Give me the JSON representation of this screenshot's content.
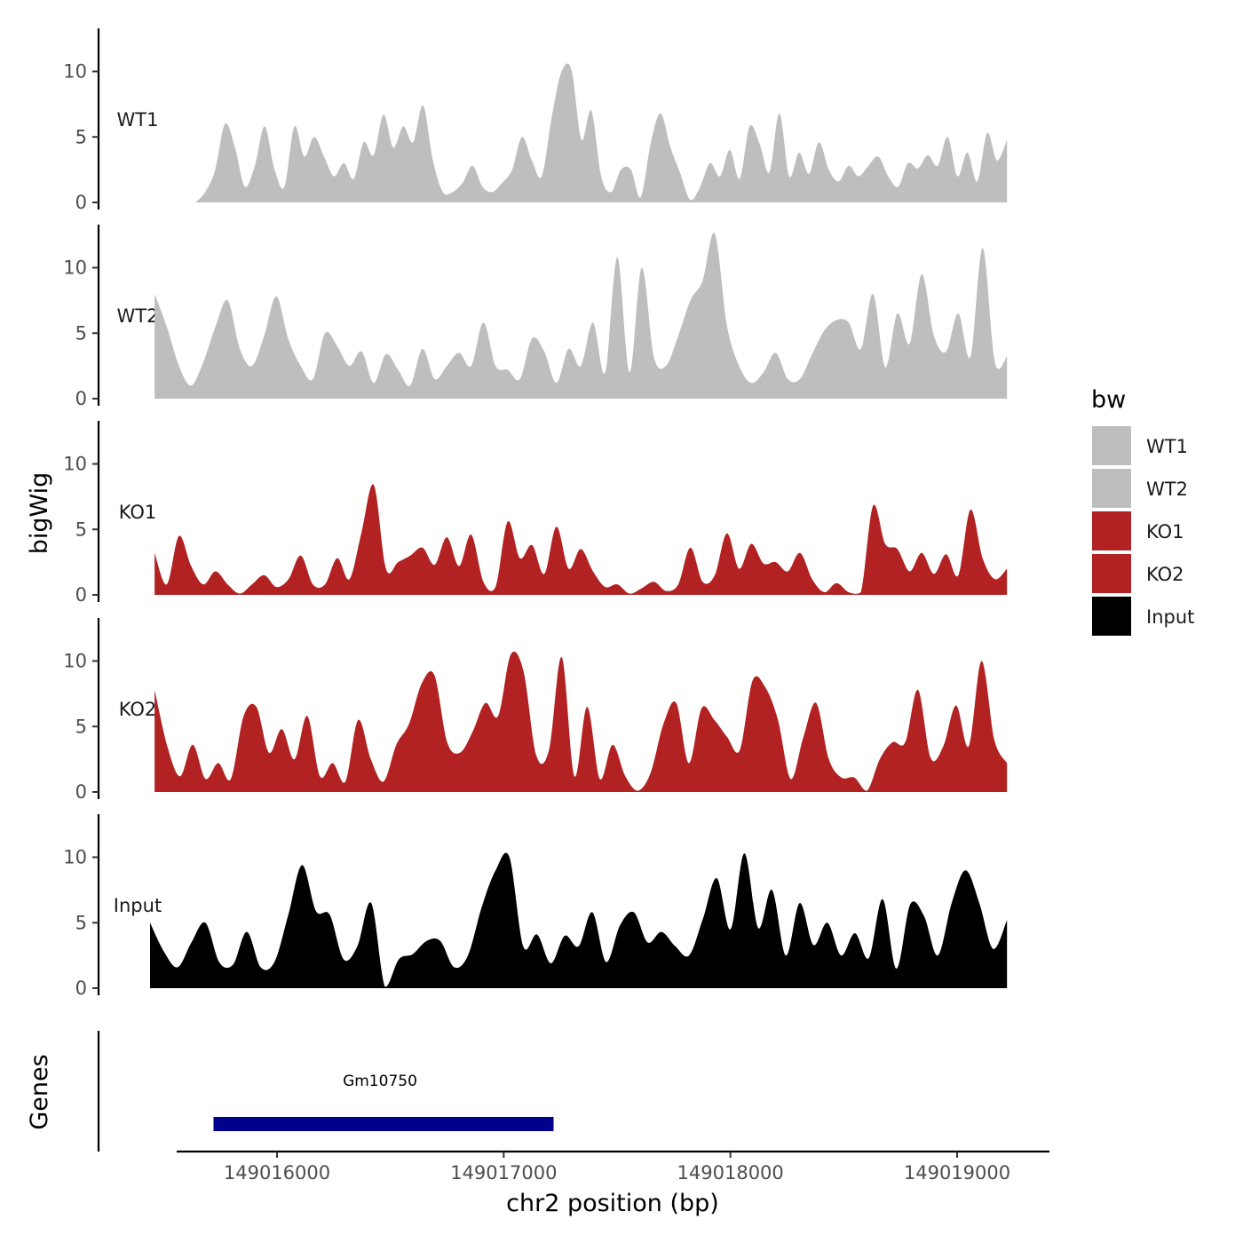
{
  "chart_data": {
    "type": "area",
    "ylabel": "bigWig",
    "xlabel": "chr2 position (bp)",
    "ylim": [
      0,
      13
    ],
    "yticks": [
      0,
      5,
      10
    ],
    "xlim": [
      149015460,
      149019400
    ],
    "xticks": [
      149016000,
      149017000,
      149018000,
      149019000
    ],
    "xtick_labels": [
      "149016000",
      "149017000",
      "149018000",
      "149019000"
    ],
    "legend": {
      "title": "bw",
      "placement": "right",
      "entries": [
        {
          "label": "WT1",
          "color": "#bebebe"
        },
        {
          "label": "WT2",
          "color": "#bebebe"
        },
        {
          "label": "KO1",
          "color": "#b22222"
        },
        {
          "label": "KO2",
          "color": "#b22222"
        },
        {
          "label": "Input",
          "color": "#000000"
        }
      ]
    },
    "series": [
      {
        "name": "WT1",
        "color": "#bebebe",
        "x_start": 149015640,
        "x_end": 149019220,
        "values": [
          0,
          0.8,
          2.5,
          6,
          4.2,
          1.2,
          2.8,
          5.8,
          2.5,
          1.2,
          5.8,
          3.5,
          5,
          3.5,
          2,
          3,
          1.8,
          4.6,
          3.6,
          6.7,
          4.2,
          5.8,
          4.6,
          7.4,
          3.2,
          0.8,
          0.8,
          1.5,
          2.8,
          1.2,
          0.8,
          1.5,
          2.5,
          5,
          3.2,
          2,
          6.5,
          10,
          10.1,
          4.8,
          7,
          2,
          0.8,
          2.5,
          2.5,
          0.4,
          4.5,
          6.8,
          4.2,
          2.2,
          0.2,
          1.2,
          3,
          2,
          4,
          1.8,
          5.8,
          4.5,
          2.3,
          6.8,
          2,
          3.8,
          2.2,
          4.6,
          2.5,
          1.6,
          2.8,
          2,
          2.8,
          3.5,
          2,
          1.2,
          3,
          2.6,
          3.6,
          2.8,
          5,
          2,
          3.8,
          1.6,
          5.3,
          3.2,
          4.8
        ]
      },
      {
        "name": "WT2",
        "color": "#bebebe",
        "x_start": 149015460,
        "x_end": 149019220,
        "values": [
          8,
          5.5,
          2.5,
          1,
          2.8,
          5.5,
          7.5,
          3.8,
          2.5,
          4.8,
          7.8,
          4.5,
          2.5,
          1.5,
          5,
          4,
          2.5,
          3.6,
          1.2,
          3.4,
          2.2,
          1,
          3.8,
          1.5,
          2.5,
          3.5,
          2.5,
          5.8,
          2.5,
          2.2,
          1.5,
          4.6,
          3.6,
          1.2,
          3.8,
          2.5,
          5.8,
          2,
          10.8,
          2,
          10,
          3.2,
          2.5,
          4.8,
          7.5,
          9,
          12.6,
          5.6,
          2.5,
          1.2,
          2,
          3.5,
          1.5,
          1.5,
          3.4,
          5.2,
          6,
          5.8,
          3.8,
          8,
          2.4,
          6.5,
          4.2,
          9.5,
          4.8,
          3.6,
          6.5,
          3.2,
          11.5,
          2.8,
          3.2
        ]
      },
      {
        "name": "KO1",
        "color": "#b22222",
        "x_start": 149015460,
        "x_end": 149019220,
        "values": [
          3.2,
          0.8,
          4.5,
          2.2,
          0.8,
          1.8,
          0.8,
          0.1,
          0.8,
          1.5,
          0.6,
          1.2,
          3,
          0.8,
          0.8,
          2.8,
          1.2,
          4.8,
          8.4,
          2,
          2.5,
          3,
          3.6,
          2.3,
          4.4,
          2.2,
          4.6,
          1,
          0.6,
          5.6,
          2.8,
          3.8,
          1.6,
          5.2,
          2,
          3.5,
          1.8,
          0.6,
          0.8,
          0.1,
          0.5,
          1,
          0.3,
          0.8,
          3.6,
          1,
          1.5,
          4.7,
          2,
          3.9,
          2.4,
          2.5,
          1.8,
          3.2,
          1.2,
          0.2,
          0.9,
          0.2,
          0.2,
          6.8,
          3.9,
          3.5,
          1.8,
          3.2,
          1.6,
          3.1,
          1.5,
          6.5,
          2.8,
          1.2,
          2
        ]
      },
      {
        "name": "KO2",
        "color": "#b22222",
        "x_start": 149015460,
        "x_end": 149019220,
        "values": [
          7.8,
          3.5,
          1.2,
          3.6,
          1,
          2.2,
          1,
          5.8,
          6.5,
          3,
          4.8,
          2.5,
          5.8,
          1.2,
          2.2,
          0.8,
          5.5,
          2.5,
          0.8,
          3.6,
          5.2,
          8.3,
          8.9,
          3.8,
          3,
          4.6,
          6.8,
          5.8,
          10.5,
          9.2,
          2.8,
          3.2,
          10.3,
          1.2,
          6.5,
          1,
          3.6,
          1.2,
          0.1,
          1.5,
          5.2,
          6.8,
          2.2,
          6.4,
          5.5,
          4.2,
          3.2,
          8.5,
          8,
          5.5,
          1,
          4.2,
          6.8,
          2.5,
          1.1,
          1.1,
          0.1,
          2.5,
          3.8,
          3.8,
          7.8,
          2.6,
          3.5,
          6.6,
          3.5,
          10,
          4,
          2.2
        ]
      },
      {
        "name": "Input",
        "color": "#000000",
        "x_start": 149015440,
        "x_end": 149019220,
        "values": [
          5,
          2.8,
          1.6,
          3.5,
          5,
          2,
          1.8,
          4.3,
          1.6,
          2,
          5.6,
          9.4,
          5.9,
          5.6,
          2.2,
          3.2,
          6.5,
          0.1,
          2.2,
          2.6,
          3.6,
          3.6,
          1.6,
          2.5,
          6.2,
          9,
          10,
          3.2,
          4.1,
          1.9,
          4,
          3.2,
          5.8,
          2,
          4.8,
          5.8,
          3.5,
          4.3,
          3.2,
          2.5,
          5.3,
          8.4,
          4.5,
          10.3,
          4.6,
          7.5,
          2.5,
          6.5,
          3.3,
          5,
          2.5,
          4.2,
          2.3,
          6.8,
          1.5,
          6.4,
          5.5,
          2.5,
          6.5,
          9,
          6.5,
          3,
          5.2
        ]
      }
    ],
    "genes_track": {
      "ylabel": "Genes",
      "genes": [
        {
          "name": "Gm10750",
          "start": 149015720,
          "end": 149017220,
          "color": "#00008b"
        }
      ]
    }
  }
}
